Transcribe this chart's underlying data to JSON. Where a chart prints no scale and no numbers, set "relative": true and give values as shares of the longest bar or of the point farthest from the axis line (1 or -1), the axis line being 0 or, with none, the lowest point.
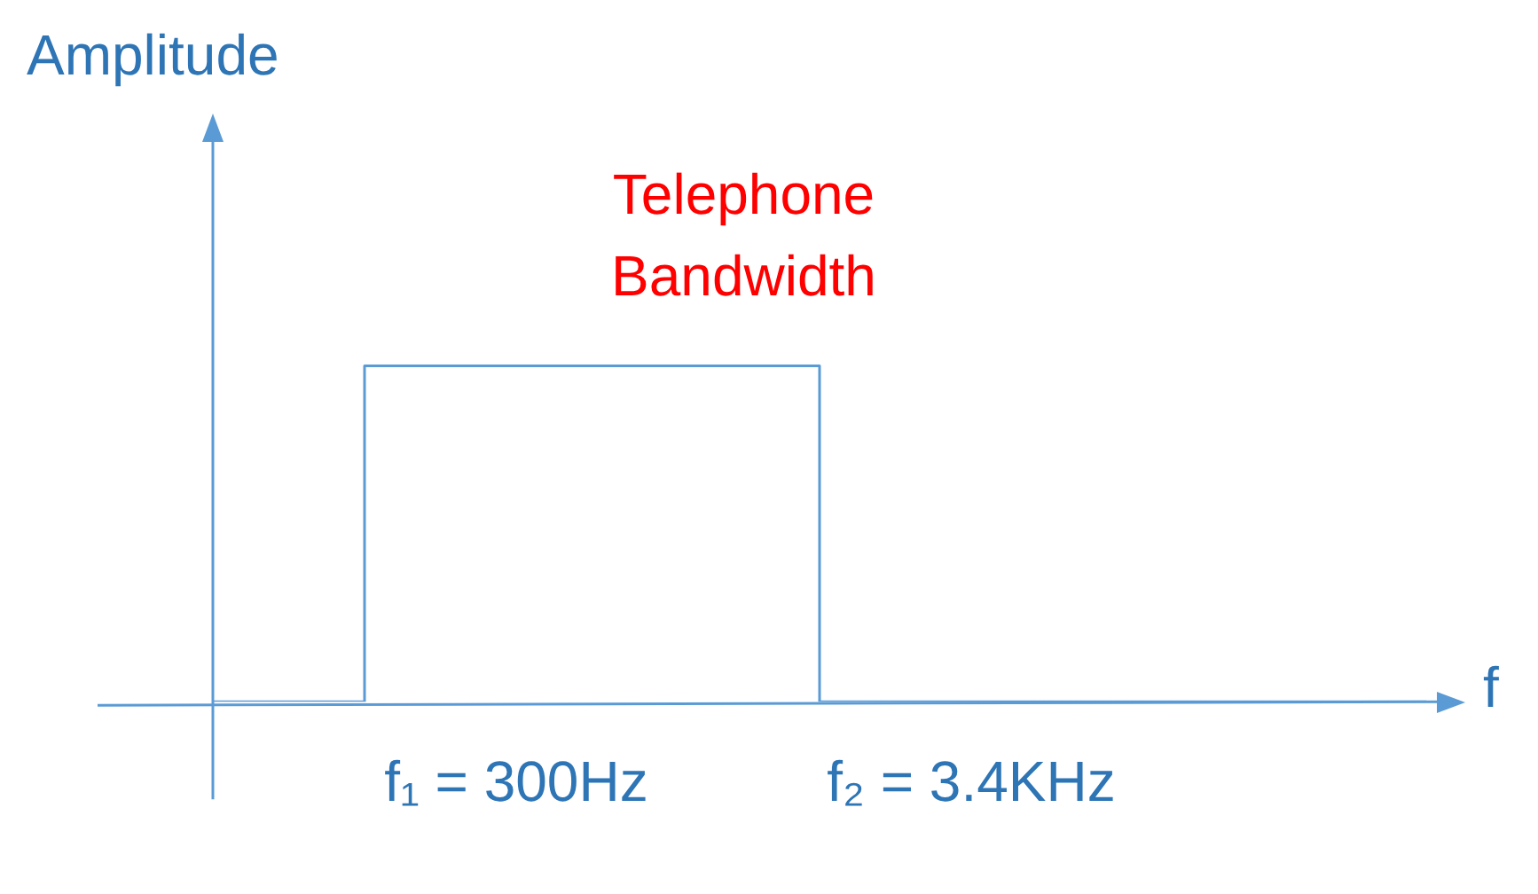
{
  "chart_data": {
    "type": "step",
    "xlabel": "f",
    "ylabel": "Amplitude",
    "relative": true,
    "categories": [
      null,
      null,
      "f₁ = 300Hz",
      null,
      null,
      "f₂ = 3.4KHz",
      null,
      null,
      null
    ],
    "series": [
      {
        "color": "#5b9bd5",
        "values": [
          0,
          0,
          1,
          1,
          1,
          0,
          0,
          0,
          0
        ]
      }
    ],
    "annotations": [
      "Telephone\nBandwidth"
    ]
  }
}
